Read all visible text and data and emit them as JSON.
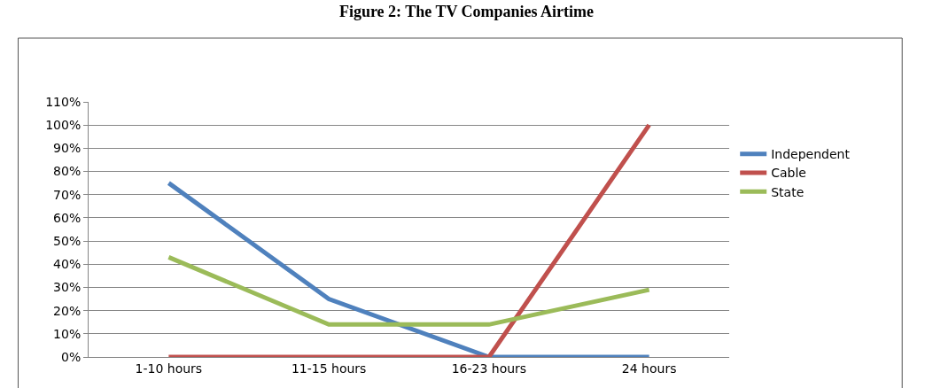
{
  "chart_data": {
    "type": "line",
    "title": "Figure 2: The TV Companies Airtime",
    "categories": [
      "1-10 hours",
      "11-15 hours",
      "16-23 hours",
      "24 hours"
    ],
    "series": [
      {
        "name": "Independent",
        "color": "#4f81bd",
        "values": [
          75,
          25,
          0,
          0
        ]
      },
      {
        "name": "Cable",
        "color": "#c0504d",
        "values": [
          0,
          0,
          0,
          100
        ]
      },
      {
        "name": "State",
        "color": "#9bbb59",
        "values": [
          43,
          14,
          14,
          29
        ]
      }
    ],
    "ylim": [
      0,
      110
    ],
    "yticks": [
      {
        "value": 0,
        "label": "0%"
      },
      {
        "value": 10,
        "label": "10%"
      },
      {
        "value": 20,
        "label": "20%"
      },
      {
        "value": 30,
        "label": "30%"
      },
      {
        "value": 40,
        "label": "40%"
      },
      {
        "value": 50,
        "label": "50%"
      },
      {
        "value": 60,
        "label": "60%"
      },
      {
        "value": 70,
        "label": "70%"
      },
      {
        "value": 80,
        "label": "80%"
      },
      {
        "value": 90,
        "label": "90%"
      },
      {
        "value": 100,
        "label": "100%"
      },
      {
        "value": 110,
        "label": "110%"
      }
    ],
    "grid": "y",
    "legend": "right",
    "marker": "none",
    "line_style": "solid"
  }
}
